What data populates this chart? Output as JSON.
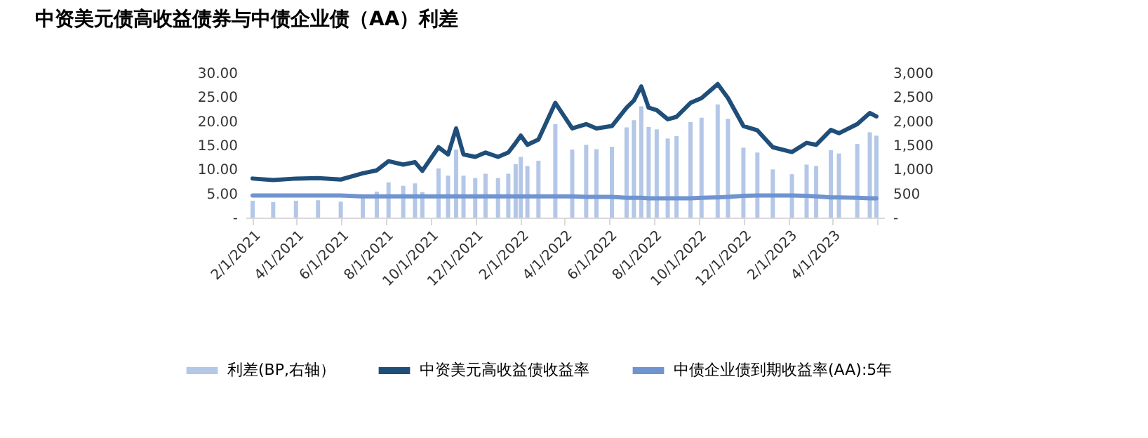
{
  "chart_data": {
    "type": "line",
    "title": "中资美元债高收益债券与中债企业债（AA）利差",
    "x": [
      "2021-02-01",
      "2021-03-01",
      "2021-04-01",
      "2021-05-01",
      "2021-06-01",
      "2021-07-01",
      "2021-07-20",
      "2021-08-05",
      "2021-08-25",
      "2021-09-10",
      "2021-09-20",
      "2021-10-12",
      "2021-10-25",
      "2021-11-05",
      "2021-11-15",
      "2021-12-01",
      "2021-12-15",
      "2022-01-01",
      "2022-01-15",
      "2022-01-25",
      "2022-02-01",
      "2022-02-10",
      "2022-02-25",
      "2022-03-20",
      "2022-04-12",
      "2022-05-01",
      "2022-05-15",
      "2022-06-05",
      "2022-06-25",
      "2022-07-05",
      "2022-07-15",
      "2022-07-25",
      "2022-08-05",
      "2022-08-20",
      "2022-09-01",
      "2022-09-20",
      "2022-10-05",
      "2022-10-27",
      "2022-11-10",
      "2022-12-01",
      "2022-12-20",
      "2023-01-10",
      "2023-02-05",
      "2023-02-25",
      "2023-03-10",
      "2023-03-30",
      "2023-04-10",
      "2023-05-05",
      "2023-05-22",
      "2023-05-31"
    ],
    "series": [
      {
        "name": "利差(BP,右轴）",
        "type": "bar",
        "axis": "y2",
        "color": "#b4c7e7",
        "values": [
          350,
          320,
          350,
          360,
          330,
          480,
          540,
          730,
          660,
          710,
          530,
          1020,
          870,
          1410,
          870,
          820,
          910,
          820,
          910,
          1110,
          1260,
          1070,
          1180,
          1940,
          1410,
          1510,
          1420,
          1470,
          1870,
          2020,
          2310,
          1880,
          1830,
          1640,
          1690,
          1980,
          2070,
          2350,
          2050,
          1450,
          1350,
          1000,
          900,
          1100,
          1070,
          1400,
          1330,
          1530,
          1770,
          1700
        ]
      },
      {
        "name": "中资美元高收益债收益率",
        "color": "#1f4e79",
        "values": [
          8.1,
          7.8,
          8.1,
          8.2,
          7.9,
          9.2,
          9.8,
          11.7,
          11.0,
          11.5,
          9.7,
          14.6,
          13.1,
          18.5,
          13.1,
          12.6,
          13.5,
          12.6,
          13.5,
          15.5,
          17.0,
          15.1,
          16.2,
          23.8,
          18.5,
          19.4,
          18.5,
          19.0,
          22.8,
          24.3,
          27.2,
          22.8,
          22.3,
          20.4,
          20.9,
          23.8,
          24.8,
          27.7,
          24.8,
          19.0,
          18.1,
          14.6,
          13.6,
          15.5,
          15.1,
          18.2,
          17.5,
          19.4,
          21.7,
          21.0
        ]
      },
      {
        "name": "中债企业债到期收益率(AA):5年",
        "color": "#6f94cf",
        "values": [
          4.6,
          4.6,
          4.6,
          4.6,
          4.6,
          4.4,
          4.4,
          4.4,
          4.4,
          4.4,
          4.4,
          4.4,
          4.4,
          4.4,
          4.4,
          4.4,
          4.4,
          4.4,
          4.4,
          4.4,
          4.4,
          4.4,
          4.4,
          4.4,
          4.4,
          4.3,
          4.3,
          4.3,
          4.1,
          4.1,
          4.1,
          4.0,
          4.0,
          4.0,
          4.0,
          4.0,
          4.1,
          4.2,
          4.3,
          4.5,
          4.6,
          4.6,
          4.6,
          4.5,
          4.4,
          4.2,
          4.2,
          4.1,
          4.0,
          4.0
        ]
      }
    ],
    "xlim": [
      "2021-02-01",
      "2023-06-01"
    ],
    "xticks": [
      {
        "value": "2021-02-01",
        "label": "2/1/2021"
      },
      {
        "value": "2021-04-01",
        "label": "4/1/2021"
      },
      {
        "value": "2021-06-01",
        "label": "6/1/2021"
      },
      {
        "value": "2021-08-01",
        "label": "8/1/2021"
      },
      {
        "value": "2021-10-01",
        "label": "10/1/2021"
      },
      {
        "value": "2021-12-01",
        "label": "12/1/2021"
      },
      {
        "value": "2022-02-01",
        "label": "2/1/2022"
      },
      {
        "value": "2022-04-01",
        "label": "4/1/2022"
      },
      {
        "value": "2022-06-01",
        "label": "6/1/2022"
      },
      {
        "value": "2022-08-01",
        "label": "8/1/2022"
      },
      {
        "value": "2022-10-01",
        "label": "10/1/2022"
      },
      {
        "value": "2022-12-01",
        "label": "12/1/2022"
      },
      {
        "value": "2023-02-01",
        "label": "2/1/2023"
      },
      {
        "value": "2023-04-01",
        "label": "4/1/2023"
      },
      {
        "value": "2023-06-01",
        "label": null
      }
    ],
    "ylim": [
      0,
      30
    ],
    "yticks": [
      {
        "value": 0,
        "label": "-"
      },
      {
        "value": 5,
        "label": "5.00"
      },
      {
        "value": 10,
        "label": "10.00"
      },
      {
        "value": 15,
        "label": "15.00"
      },
      {
        "value": 20,
        "label": "20.00"
      },
      {
        "value": 25,
        "label": "25.00"
      },
      {
        "value": 30,
        "label": "30.00"
      }
    ],
    "y2lim": [
      0,
      3000
    ],
    "y2ticks": [
      {
        "value": 0,
        "label": "-"
      },
      {
        "value": 500,
        "label": "500"
      },
      {
        "value": 1000,
        "label": "1,000"
      },
      {
        "value": 1500,
        "label": "1,500"
      },
      {
        "value": 2000,
        "label": "2,000"
      },
      {
        "value": 2500,
        "label": "2,500"
      },
      {
        "value": 3000,
        "label": "3,000"
      }
    ],
    "grid": false,
    "legend": "bottom"
  }
}
